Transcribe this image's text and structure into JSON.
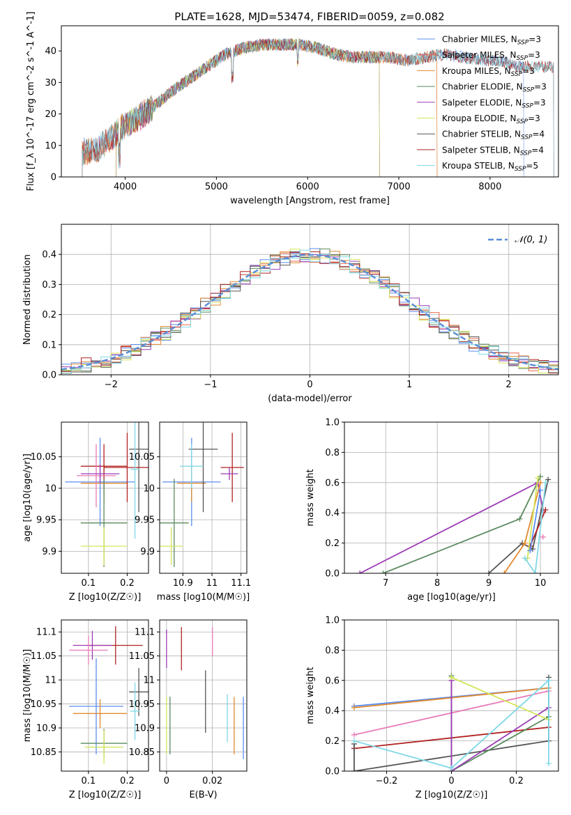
{
  "figure": {
    "title": "PLATE=1628, MJD=53474, FIBERID=0059, z=0.082"
  },
  "chart_data": [
    {
      "id": "spectrum",
      "type": "line",
      "xlabel": "wavelength [Angstrom, rest frame]",
      "ylabel": "Flux [f_λ 10^-17 erg cm^-2 s^-1 A^-1]",
      "xlim": [
        3300,
        8750
      ],
      "ylim": [
        0,
        48
      ],
      "xticks": [
        4000,
        5000,
        6000,
        7000,
        8000
      ],
      "yticks": [
        0,
        10,
        20,
        30,
        40
      ],
      "grid": false,
      "legend_position": "upper-right",
      "continuum": [
        [
          3530,
          8
        ],
        [
          3700,
          9
        ],
        [
          3880,
          13
        ],
        [
          3970,
          16
        ],
        [
          4100,
          18
        ],
        [
          4300,
          22
        ],
        [
          4500,
          27
        ],
        [
          4700,
          31
        ],
        [
          4900,
          35
        ],
        [
          5100,
          39
        ],
        [
          5300,
          41
        ],
        [
          5500,
          42
        ],
        [
          5700,
          42
        ],
        [
          5900,
          42
        ],
        [
          6100,
          41
        ],
        [
          6300,
          39
        ],
        [
          6500,
          38
        ],
        [
          6700,
          38
        ],
        [
          6900,
          38
        ],
        [
          7100,
          37
        ],
        [
          7300,
          38
        ],
        [
          7500,
          39
        ],
        [
          7700,
          38
        ],
        [
          7900,
          37
        ],
        [
          8100,
          37
        ],
        [
          8300,
          35
        ],
        [
          8370,
          35
        ]
      ],
      "series": [
        {
          "name": "Chabrier MILES, N_SSP=3",
          "color": "#5b8def",
          "start": 3530,
          "end": 8370
        },
        {
          "name": "Salpeter MILES, N_SSP=3",
          "color": "#e8674a",
          "start": 3530,
          "end": 7420
        },
        {
          "name": "Kroupa MILES, N_SSP=3",
          "color": "#e08a2e",
          "start": 3530,
          "end": 7420
        },
        {
          "name": "Chabrier ELODIE, N_SSP=3",
          "color": "#5a8a5e",
          "start": 3900,
          "end": 6790
        },
        {
          "name": "Salpeter ELODIE, N_SSP=3",
          "color": "#9b3bb5",
          "start": 3900,
          "end": 6790
        },
        {
          "name": "Kroupa ELODIE, N_SSP=3",
          "color": "#d4e55a",
          "start": 3900,
          "end": 6790
        },
        {
          "name": "Chabrier STELIB, N_SSP=4",
          "color": "#555555",
          "start": 3530,
          "end": 8700
        },
        {
          "name": "Salpeter STELIB, N_SSP=4",
          "color": "#b22222",
          "start": 3530,
          "end": 8700
        },
        {
          "name": "Kroupa STELIB, N_SSP=5",
          "color": "#7fd8e6",
          "start": 3530,
          "end": 8700
        }
      ]
    },
    {
      "id": "residuals",
      "type": "line",
      "xlabel": "(data-model)/error",
      "ylabel": "Normed distribution",
      "xlim": [
        -2.5,
        2.5
      ],
      "ylim": [
        0,
        0.5
      ],
      "xticks": [
        -2,
        -1,
        0,
        1,
        2
      ],
      "yticks": [
        0.0,
        0.1,
        0.2,
        0.3,
        0.4
      ],
      "grid": true,
      "legend_position": "upper-right",
      "legend": "𝒩(0, 1)",
      "curve_color": "#5b8fd6",
      "hist_colors": [
        "#5b8def",
        "#e8674a",
        "#e08a2e",
        "#5a8a5e",
        "#9b3bb5",
        "#d4e55a",
        "#555555",
        "#b22222",
        "#7fd8e6"
      ]
    },
    {
      "id": "age-vs-z",
      "type": "scatter",
      "xlabel": "Z [log10(Z/Z☉)]",
      "ylabel": "age [log10(age/yr)]",
      "xlim": [
        0.03,
        0.255
      ],
      "ylim": [
        9.865,
        10.105
      ],
      "xticks": [
        0.1,
        0.2
      ],
      "yticks": [
        9.9,
        9.95,
        10.0,
        10.05
      ],
      "grid": true,
      "points": [
        {
          "x": 0.13,
          "y": 10.01,
          "xerr": 0.09,
          "yerr": 0.07,
          "color": "#5b8def"
        },
        {
          "x": 0.14,
          "y": 10.008,
          "xerr": 0.06,
          "yerr": 0.03,
          "color": "#e08a2e"
        },
        {
          "x": 0.14,
          "y": 10.035,
          "xerr": 0.06,
          "yerr": 0.035,
          "color": "#b22222"
        },
        {
          "x": 0.12,
          "y": 10.02,
          "xerr": 0.05,
          "yerr": 0.05,
          "color": "#e87ab8"
        },
        {
          "x": 0.13,
          "y": 10.023,
          "xerr": 0.05,
          "yerr": 0.015,
          "color": "#9b3bb5"
        },
        {
          "x": 0.14,
          "y": 9.945,
          "xerr": 0.06,
          "yerr": 0.07,
          "color": "#5a8a5e"
        },
        {
          "x": 0.14,
          "y": 9.908,
          "xerr": 0.06,
          "yerr": 0.03,
          "color": "#d4e55a"
        },
        {
          "x": 0.23,
          "y": 10.062,
          "xerr": 0.025,
          "yerr": 0.1,
          "color": "#555555"
        },
        {
          "x": 0.2,
          "y": 10.033,
          "xerr": 0.06,
          "yerr": 0.055,
          "color": "#b22222"
        },
        {
          "x": 0.22,
          "y": 10.03,
          "xerr": 0.012,
          "yerr": 0.11,
          "color": "#7fd8e6"
        }
      ]
    },
    {
      "id": "age-vs-mass",
      "type": "scatter",
      "xlabel": "mass [log10(M/M☉)]",
      "ylabel": "",
      "xlim": [
        10.82,
        11.12
      ],
      "ylim": [
        9.865,
        10.105
      ],
      "xticks": [
        10.9,
        11.0,
        11.1
      ],
      "yticks": [
        9.9,
        9.95,
        10.0,
        10.05
      ],
      "grid": true,
      "points": [
        {
          "x": 10.93,
          "y": 10.01,
          "xerr": 0.1,
          "yerr": 0.07,
          "color": "#5b8def"
        },
        {
          "x": 10.93,
          "y": 10.008,
          "xerr": 0.05,
          "yerr": 0.03,
          "color": "#e08a2e"
        },
        {
          "x": 10.97,
          "y": 10.062,
          "xerr": 0.05,
          "yerr": 0.1,
          "color": "#555555"
        },
        {
          "x": 11.07,
          "y": 10.033,
          "xerr": 0.04,
          "yerr": 0.055,
          "color": "#b22222"
        },
        {
          "x": 11.06,
          "y": 10.023,
          "xerr": 0.03,
          "yerr": 0.01,
          "color": "#9b3bb5"
        },
        {
          "x": 10.93,
          "y": 10.035,
          "xerr": 0.04,
          "yerr": 0.035,
          "color": "#7fd8e6"
        },
        {
          "x": 10.87,
          "y": 9.945,
          "xerr": 0.05,
          "yerr": 0.07,
          "color": "#5a8a5e"
        },
        {
          "x": 10.86,
          "y": 9.908,
          "xerr": 0.04,
          "yerr": 0.03,
          "color": "#d4e55a"
        }
      ]
    },
    {
      "id": "weight-vs-age",
      "type": "line",
      "xlabel": "age [log10(age/yr)]",
      "ylabel": "mass weight",
      "xlim": [
        6.2,
        10.35
      ],
      "ylim": [
        0,
        1.0
      ],
      "xticks": [
        7,
        8,
        9,
        10
      ],
      "yticks": [
        0.0,
        0.2,
        0.4,
        0.6,
        0.8,
        1.0
      ],
      "grid": true,
      "series": [
        {
          "color": "#9b3bb5",
          "x": [
            6.5,
            9.95,
            10.05
          ],
          "y": [
            0.0,
            0.6,
            0.42
          ]
        },
        {
          "color": "#5a8a5e",
          "x": [
            6.95,
            9.6,
            10.0
          ],
          "y": [
            0.0,
            0.36,
            0.64
          ]
        },
        {
          "color": "#555555",
          "x": [
            9.0,
            9.65,
            9.85,
            10.15
          ],
          "y": [
            0.0,
            0.2,
            0.16,
            0.62
          ]
        },
        {
          "color": "#e08a2e",
          "x": [
            9.3,
            9.7,
            10.0
          ],
          "y": [
            0.0,
            0.2,
            0.6
          ]
        },
        {
          "color": "#b22222",
          "x": [
            9.8,
            10.1
          ],
          "y": [
            0.18,
            0.42
          ]
        },
        {
          "color": "#d4e55a",
          "x": [
            9.75,
            9.95
          ],
          "y": [
            0.1,
            0.63
          ]
        },
        {
          "color": "#7fd8e6",
          "x": [
            9.7,
            9.9,
            10.1
          ],
          "y": [
            0.1,
            0.0,
            0.6
          ]
        },
        {
          "color": "#e87ab8",
          "x": [
            10.05
          ],
          "y": [
            0.24
          ]
        },
        {
          "color": "#5b8def",
          "x": [
            9.8,
            10.0
          ],
          "y": [
            0.15,
            0.55
          ]
        }
      ]
    },
    {
      "id": "mass-vs-z",
      "type": "scatter",
      "xlabel": "Z [log10(Z/Z☉)]",
      "ylabel": "mass [log10(M/M☉)]",
      "xlim": [
        0.03,
        0.255
      ],
      "ylim": [
        10.81,
        11.125
      ],
      "xticks": [
        0.1,
        0.2
      ],
      "yticks": [
        10.85,
        10.9,
        10.95,
        11.0,
        11.05,
        11.1
      ],
      "grid": true,
      "points": [
        {
          "x": 0.12,
          "y": 10.945,
          "xerr": 0.07,
          "yerr": 0.1,
          "color": "#5b8def"
        },
        {
          "x": 0.13,
          "y": 10.93,
          "xerr": 0.07,
          "yerr": 0.03,
          "color": "#e08a2e"
        },
        {
          "x": 0.17,
          "y": 11.072,
          "xerr": 0.07,
          "yerr": 0.04,
          "color": "#b22222"
        },
        {
          "x": 0.11,
          "y": 11.072,
          "xerr": 0.05,
          "yerr": 0.03,
          "color": "#9b3bb5"
        },
        {
          "x": 0.1,
          "y": 11.062,
          "xerr": 0.05,
          "yerr": 0.03,
          "color": "#e87ab8"
        },
        {
          "x": 0.14,
          "y": 10.868,
          "xerr": 0.06,
          "yerr": 0.03,
          "color": "#5a8a5e"
        },
        {
          "x": 0.14,
          "y": 10.86,
          "xerr": 0.05,
          "yerr": 0.035,
          "color": "#d4e55a"
        },
        {
          "x": 0.23,
          "y": 10.975,
          "xerr": 0.025,
          "yerr": 0.05,
          "color": "#555555"
        },
        {
          "x": 0.22,
          "y": 10.935,
          "xerr": 0.012,
          "yerr": 0.06,
          "color": "#7fd8e6"
        }
      ]
    },
    {
      "id": "mass-vs-ebv",
      "type": "scatter",
      "xlabel": "E(B-V)",
      "ylabel": "",
      "xlim": [
        -0.003,
        0.035
      ],
      "ylim": [
        10.81,
        11.125
      ],
      "xticks": [
        0.0,
        0.02
      ],
      "yticks": [
        10.85,
        10.9,
        10.95,
        11.0,
        11.05,
        11.1
      ],
      "grid": true,
      "points": [
        {
          "x": 0.0,
          "y": 11.065,
          "yerr": 0.04,
          "color": "#9b3bb5"
        },
        {
          "x": 0.0065,
          "y": 11.065,
          "yerr": 0.045,
          "color": "#b22222"
        },
        {
          "x": 0.0,
          "y": 10.905,
          "yerr": 0.06,
          "color": "#d4e55a"
        },
        {
          "x": 0.0015,
          "y": 10.905,
          "yerr": 0.06,
          "color": "#5a8a5e"
        },
        {
          "x": 0.017,
          "y": 10.955,
          "yerr": 0.065,
          "color": "#555555"
        },
        {
          "x": 0.02,
          "y": 11.08,
          "yerr": 0.03,
          "color": "#e87ab8"
        },
        {
          "x": 0.0265,
          "y": 10.92,
          "yerr": 0.05,
          "color": "#7fd8e6"
        },
        {
          "x": 0.0295,
          "y": 10.905,
          "yerr": 0.06,
          "color": "#e08a2e"
        },
        {
          "x": 0.0335,
          "y": 10.9,
          "yerr": 0.065,
          "color": "#5b8def"
        }
      ]
    },
    {
      "id": "weight-vs-z",
      "type": "line",
      "xlabel": "Z [log10(Z/Z☉)]",
      "ylabel": "mass weight",
      "xlim": [
        -0.33,
        0.33
      ],
      "ylim": [
        0,
        1.0
      ],
      "xticks": [
        -0.2,
        0.0,
        0.2
      ],
      "yticks": [
        0.0,
        0.2,
        0.4,
        0.6,
        0.8,
        1.0
      ],
      "grid": true,
      "series": [
        {
          "color": "#5b8def",
          "x": [
            -0.3,
            0.3
          ],
          "y": [
            0.43,
            0.55
          ]
        },
        {
          "color": "#e08a2e",
          "x": [
            -0.3,
            0.3
          ],
          "y": [
            0.42,
            0.55
          ]
        },
        {
          "color": "#e87ab8",
          "x": [
            -0.3,
            0.3
          ],
          "y": [
            0.24,
            0.53
          ]
        },
        {
          "color": "#b22222",
          "x": [
            -0.3,
            0.3
          ],
          "y": [
            0.15,
            0.29
          ]
        },
        {
          "color": "#555555",
          "x": [
            -0.3,
            -0.3,
            0.3,
            0.3
          ],
          "y": [
            0.18,
            0.0,
            0.2,
            0.62
          ]
        },
        {
          "color": "#5a8a5e",
          "x": [
            0.0,
            0.0,
            0.3
          ],
          "y": [
            0.63,
            0.0,
            0.36
          ]
        },
        {
          "color": "#9b3bb5",
          "x": [
            0.0,
            0.0,
            0.3
          ],
          "y": [
            0.6,
            0.0,
            0.42
          ]
        },
        {
          "color": "#d4e55a",
          "x": [
            0.0,
            0.3
          ],
          "y": [
            0.62,
            0.34
          ]
        },
        {
          "color": "#7fd8e6",
          "x": [
            -0.3,
            0.0,
            0.3,
            0.3
          ],
          "y": [
            0.2,
            0.02,
            0.6,
            0.05
          ]
        }
      ]
    }
  ]
}
